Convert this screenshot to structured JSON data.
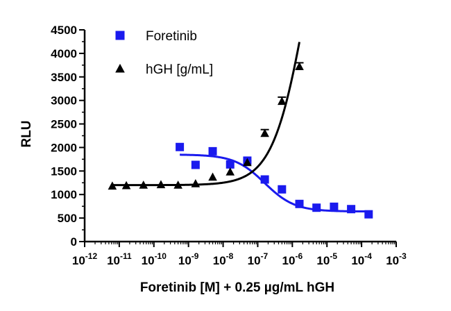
{
  "chart_data": {
    "type": "scatter",
    "xscale": "log",
    "xlim": [
      1e-12,
      0.001
    ],
    "ylim": [
      0,
      4500
    ],
    "xlabel": "Foretinib [M] + 0.25 µg/mL hGH",
    "ylabel": "RLU",
    "x_ticks": [
      {
        "base": "10",
        "exp": "-12"
      },
      {
        "base": "10",
        "exp": "-11"
      },
      {
        "base": "10",
        "exp": "-10"
      },
      {
        "base": "10",
        "exp": "-9"
      },
      {
        "base": "10",
        "exp": "-8"
      },
      {
        "base": "10",
        "exp": "-7"
      },
      {
        "base": "10",
        "exp": "-6"
      },
      {
        "base": "10",
        "exp": "-5"
      },
      {
        "base": "10",
        "exp": "-4"
      },
      {
        "base": "10",
        "exp": "-3"
      }
    ],
    "y_ticks": [
      "0",
      "500",
      "1000",
      "1500",
      "2000",
      "2500",
      "3000",
      "3500",
      "4000",
      "4500"
    ],
    "legend_position": "top-left",
    "series": [
      {
        "name": "Foretinib",
        "marker": "square",
        "color": "#1a1aee",
        "x": [
          5.6e-10,
          1.6e-09,
          5e-09,
          1.6e-08,
          5e-08,
          1.6e-07,
          5e-07,
          1.6e-06,
          5e-06,
          1.6e-05,
          5e-05,
          0.00016
        ],
        "y": [
          2010,
          1630,
          1920,
          1640,
          1720,
          1320,
          1110,
          800,
          720,
          740,
          690,
          580
        ],
        "fit": {
          "top": 1850,
          "bottom": 640,
          "logEC50": -6.8,
          "hill": -1.0
        }
      },
      {
        "name": "hGH [g/mL]",
        "marker": "triangle",
        "color": "#000000",
        "x": [
          6.3e-12,
          1.6e-11,
          5e-11,
          1.6e-10,
          5e-10,
          1.6e-09,
          5e-09,
          1.6e-08,
          5e-08,
          1.6e-07,
          5e-07,
          1.6e-06
        ],
        "y": [
          1180,
          1190,
          1200,
          1210,
          1200,
          1230,
          1370,
          1480,
          1680,
          2300,
          2980,
          3720
        ],
        "err": [
          0,
          0,
          0,
          0,
          0,
          0,
          0,
          0,
          40,
          80,
          90,
          80
        ],
        "fit": {
          "bottom": 1200,
          "top": 9000,
          "logEC50": -5.58,
          "hill": 0.9,
          "xmax": 1.6e-06
        }
      }
    ]
  }
}
